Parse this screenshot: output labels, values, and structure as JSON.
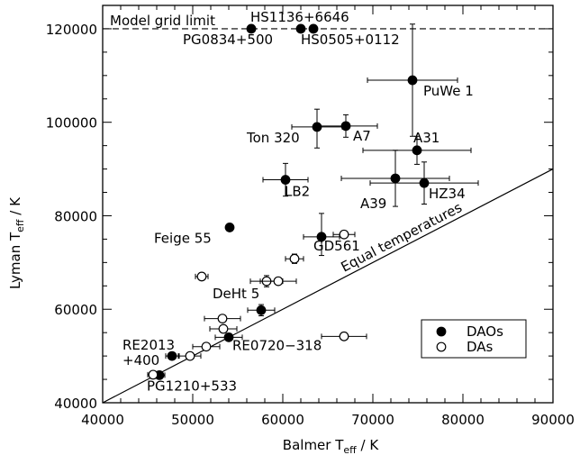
{
  "chart_data": {
    "type": "scatter",
    "xlabel": "Balmer T",
    "xlabel_sub": "eff",
    "xlabel_unit": " / K",
    "ylabel": "Lyman T",
    "ylabel_sub": "eff",
    "ylabel_unit": " / K",
    "xlim": [
      40000,
      90000
    ],
    "ylim": [
      40000,
      125000
    ],
    "xticks": [
      40000,
      50000,
      60000,
      70000,
      80000,
      90000
    ],
    "yticks": [
      40000,
      60000,
      80000,
      100000,
      120000
    ],
    "xtick_labels": [
      "40000",
      "50000",
      "60000",
      "70000",
      "80000",
      "90000"
    ],
    "ytick_labels": [
      "40000",
      "60000",
      "80000",
      "100000",
      "120000"
    ],
    "grid": false,
    "legend_position": "bottom-right",
    "model_grid_limit": {
      "y": 120000,
      "label": "Model grid limit"
    },
    "equal_line_label": "Equal temperatures",
    "series": [
      {
        "name": "DAOs",
        "marker": "filled-circle",
        "points": [
          {
            "x": 56500,
            "y": 120000
          },
          {
            "x": 62000,
            "y": 120000
          },
          {
            "x": 63400,
            "y": 120000
          },
          {
            "x": 74400,
            "y": 109000,
            "xerr": [
              5000,
              5000
            ],
            "yerr": [
              12000,
              12000
            ]
          },
          {
            "x": 63800,
            "y": 99000,
            "xerr": [
              2800,
              2800
            ],
            "yerr": [
              4500,
              3800
            ]
          },
          {
            "x": 67000,
            "y": 99200,
            "xerr": [
              3500,
              3500
            ],
            "yerr": [
              2400,
              2400
            ]
          },
          {
            "x": 74900,
            "y": 94000,
            "xerr": [
              6000,
              6000
            ],
            "yerr": [
              3000,
              3000
            ]
          },
          {
            "x": 72500,
            "y": 88000,
            "xerr": [
              6000,
              6000
            ],
            "yerr": [
              6000,
              6000
            ]
          },
          {
            "x": 75700,
            "y": 87000,
            "xerr": [
              6000,
              6000
            ],
            "yerr": [
              4500,
              4500
            ]
          },
          {
            "x": 60300,
            "y": 87700,
            "xerr": [
              2500,
              2500
            ],
            "yerr": [
              3500,
              3500
            ]
          },
          {
            "x": 54100,
            "y": 77500
          },
          {
            "x": 64300,
            "y": 75500,
            "xerr": [
              2000,
              2000
            ],
            "yerr": [
              4000,
              5000
            ]
          },
          {
            "x": 57600,
            "y": 59800,
            "xerr": [
              1500,
              1500
            ],
            "yerr": [
              1200,
              1200
            ]
          },
          {
            "x": 54000,
            "y": 54000,
            "xerr": [
              1500,
              1500
            ],
            "yerr": [
              800,
              800
            ]
          },
          {
            "x": 47700,
            "y": 50000,
            "xerr": [
              700,
              700
            ]
          },
          {
            "x": 46300,
            "y": 45900,
            "xerr": [
              600,
              600
            ]
          }
        ]
      },
      {
        "name": "DAs",
        "marker": "open-circle",
        "points": [
          {
            "x": 66800,
            "y": 76000,
            "xerr": [
              1200,
              1200
            ]
          },
          {
            "x": 61300,
            "y": 70800,
            "xerr": [
              1000,
              1000
            ],
            "yerr": [
              1000,
              1000
            ]
          },
          {
            "x": 51000,
            "y": 67000,
            "xerr": [
              700,
              700
            ]
          },
          {
            "x": 58200,
            "y": 66000,
            "xerr": [
              1800,
              1800
            ],
            "yerr": [
              1200,
              1200
            ]
          },
          {
            "x": 59500,
            "y": 66000,
            "xerr": [
              2000,
              2000
            ]
          },
          {
            "x": 53300,
            "y": 58000,
            "xerr": [
              2000,
              2000
            ]
          },
          {
            "x": 53400,
            "y": 55800,
            "xerr": [
              1500,
              1500
            ]
          },
          {
            "x": 51500,
            "y": 52000,
            "xerr": [
              1500,
              1500
            ]
          },
          {
            "x": 49700,
            "y": 50000,
            "xerr": [
              1200,
              1200
            ]
          },
          {
            "x": 66800,
            "y": 54200,
            "xerr": [
              2500,
              2500
            ]
          },
          {
            "x": 45600,
            "y": 46000,
            "xerr": [
              600,
              600
            ]
          }
        ]
      }
    ],
    "annotations": [
      {
        "text": "HS1136+6646",
        "x": 62000,
        "y": 120000
      },
      {
        "text": "PG0834+500",
        "x": 56500,
        "y": 120000
      },
      {
        "text": "HS0505+0112",
        "x": 63400,
        "y": 120000
      },
      {
        "text": "PuWe 1",
        "x": 74400,
        "y": 109000
      },
      {
        "text": "Ton 320",
        "x": 63800,
        "y": 99000
      },
      {
        "text": "A7",
        "x": 67000,
        "y": 99200
      },
      {
        "text": "A31",
        "x": 74900,
        "y": 94000
      },
      {
        "text": "A39",
        "x": 72500,
        "y": 88000
      },
      {
        "text": "HZ34",
        "x": 75700,
        "y": 87000
      },
      {
        "text": "LB2",
        "x": 60300,
        "y": 87700
      },
      {
        "text": "Feige 55",
        "x": 54100,
        "y": 77500
      },
      {
        "text": "GD561",
        "x": 64300,
        "y": 75500
      },
      {
        "text": "DeHt 5",
        "x": 58200,
        "y": 66000
      },
      {
        "text": "RE0720−318",
        "x": 54000,
        "y": 54000
      },
      {
        "text": "RE2013",
        "x": 47700,
        "y": 50000
      },
      {
        "text": "+400",
        "x": 47700,
        "y": 50000
      },
      {
        "text": "PG1210+533",
        "x": 46300,
        "y": 45900
      }
    ]
  }
}
